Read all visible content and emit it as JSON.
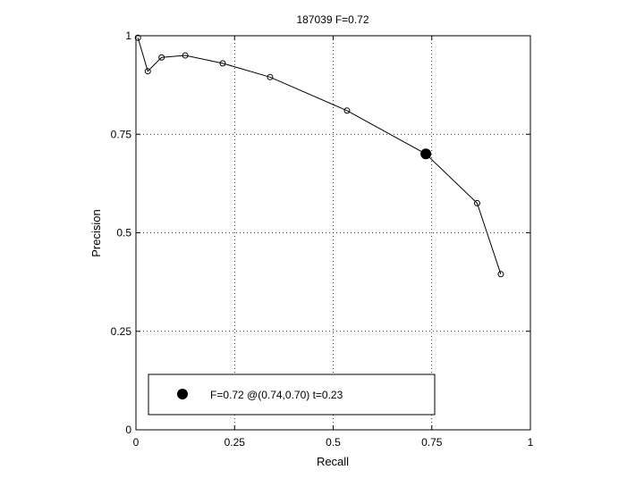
{
  "chart_data": {
    "type": "line",
    "title": "187039 F=0.72",
    "xlabel": "Recall",
    "ylabel": "Precision",
    "xlim": [
      0,
      1
    ],
    "ylim": [
      0,
      1
    ],
    "grid": true,
    "x_ticks": [
      0,
      0.25,
      0.5,
      0.75,
      1
    ],
    "x_tick_labels": [
      "0",
      "0.25",
      "0.5",
      "0.75",
      "1"
    ],
    "y_ticks": [
      0,
      0.25,
      0.5,
      0.75,
      1
    ],
    "y_tick_labels": [
      "0",
      "0.25",
      "0.5",
      "0.75",
      "1"
    ],
    "series": [
      {
        "x": [
          0.005,
          0.03,
          0.065,
          0.125,
          0.22,
          0.34,
          0.535,
          0.735,
          0.865,
          0.925
        ],
        "y": [
          0.995,
          0.91,
          0.945,
          0.95,
          0.93,
          0.895,
          0.81,
          0.7,
          0.575,
          0.395
        ],
        "marker": "open-circle",
        "color": "#000000"
      }
    ],
    "highlight_point": {
      "x": 0.735,
      "y": 0.7,
      "marker": "filled-circle"
    },
    "legend": {
      "placement": "lower-left",
      "entries": [
        {
          "label": "F=0.72 @(0.74,0.70) t=0.23",
          "marker": "filled-circle"
        }
      ]
    }
  }
}
